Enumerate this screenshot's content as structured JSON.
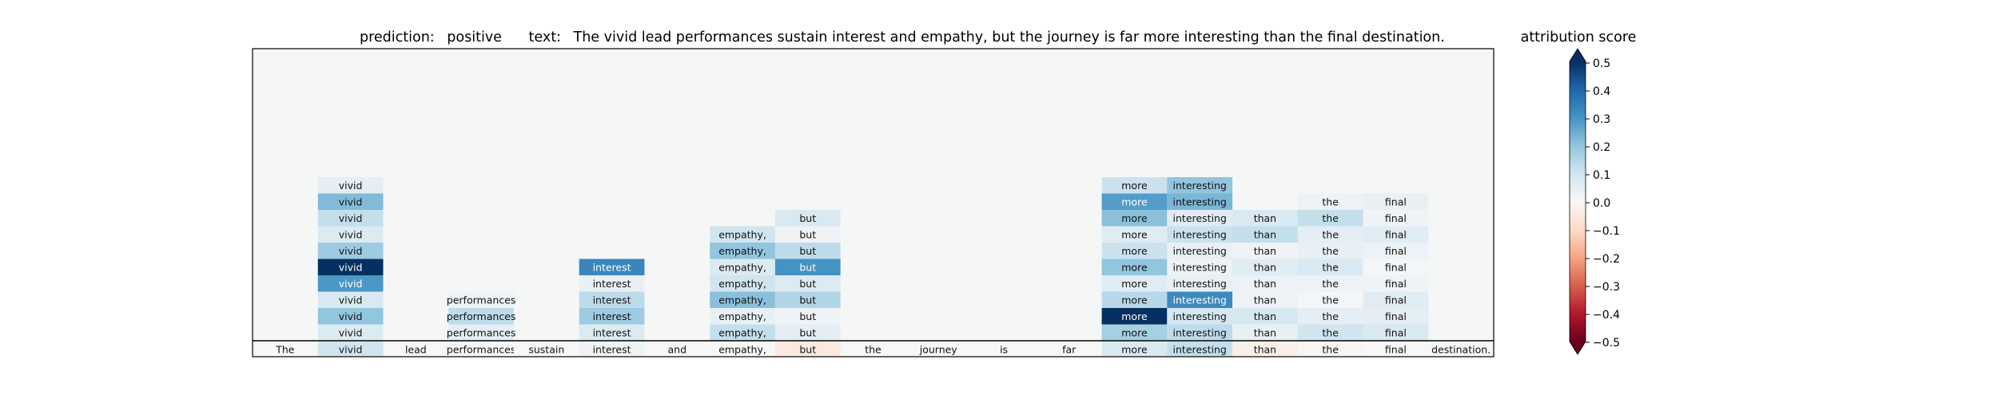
{
  "chart_data": {
    "type": "heatmap",
    "title": {
      "prediction_label": "prediction:",
      "prediction_value": "positive",
      "text_label": "text:",
      "text_value": "The vivid lead performances sustain interest and empathy, but the journey is far more interesting than the final destination."
    },
    "tokens": [
      "The",
      "vivid",
      "lead",
      "performances",
      "sustain",
      "interest",
      "and",
      "empathy,",
      "but",
      "the",
      "journey",
      "is",
      "far",
      "more",
      "interesting",
      "than",
      "the",
      "final",
      "destination."
    ],
    "token_scores": [
      0.0,
      0.1,
      0.0,
      0.0,
      0.0,
      0.02,
      0.0,
      0.0,
      -0.05,
      0.0,
      0.0,
      0.0,
      0.0,
      0.08,
      0.12,
      -0.03,
      -0.01,
      0.0,
      0.0
    ],
    "stacked_cells": [
      {
        "token_index": 1,
        "values": [
          0.07,
          0.2,
          0.08,
          0.29,
          0.5,
          0.18,
          0.07,
          0.12,
          0.22,
          0.05
        ]
      },
      {
        "token_index": 3,
        "values": [
          0.05,
          0.13,
          0.03
        ]
      },
      {
        "token_index": 5,
        "values": [
          0.07,
          0.18,
          0.13,
          0.04,
          0.33
        ]
      },
      {
        "token_index": 7,
        "values": [
          0.12,
          0.04,
          0.21,
          0.1,
          0.07,
          0.2,
          0.1
        ]
      },
      {
        "token_index": 8,
        "values": [
          0.05,
          0.02,
          0.15,
          0.07,
          0.3,
          0.13,
          0.02,
          0.08
        ]
      },
      {
        "token_index": 13,
        "values": [
          0.17,
          0.5,
          0.14,
          0.06,
          0.2,
          0.11,
          0.06,
          0.21,
          0.28,
          0.11
        ]
      },
      {
        "token_index": 14,
        "values": [
          0.13,
          0.09,
          0.32,
          0.04,
          0.03,
          0.04,
          0.11,
          0.06,
          0.23,
          0.2
        ]
      },
      {
        "token_index": 15,
        "values": [
          0.04,
          0.09,
          0.03,
          0.03,
          0.06,
          0.02,
          0.12,
          0.08
        ]
      },
      {
        "token_index": 16,
        "values": [
          0.1,
          0.05,
          0.01,
          0.03,
          0.08,
          0.04,
          0.05,
          0.12,
          0.03
        ]
      },
      {
        "token_index": 17,
        "values": [
          0.08,
          0.05,
          0.06,
          0.02,
          0.01,
          0.03,
          0.06,
          0.02,
          0.04
        ]
      }
    ],
    "colorbar": {
      "title": "attribution score",
      "colormap": "RdBu",
      "range": [
        -0.5,
        0.5
      ],
      "ticks": [
        "−0.5",
        "−0.4",
        "−0.3",
        "−0.2",
        "−0.1",
        "0.0",
        "0.1",
        "0.2",
        "0.3",
        "0.4",
        "0.5"
      ],
      "extend": "both"
    },
    "background_color": "#f5f7f7",
    "grid": false
  }
}
